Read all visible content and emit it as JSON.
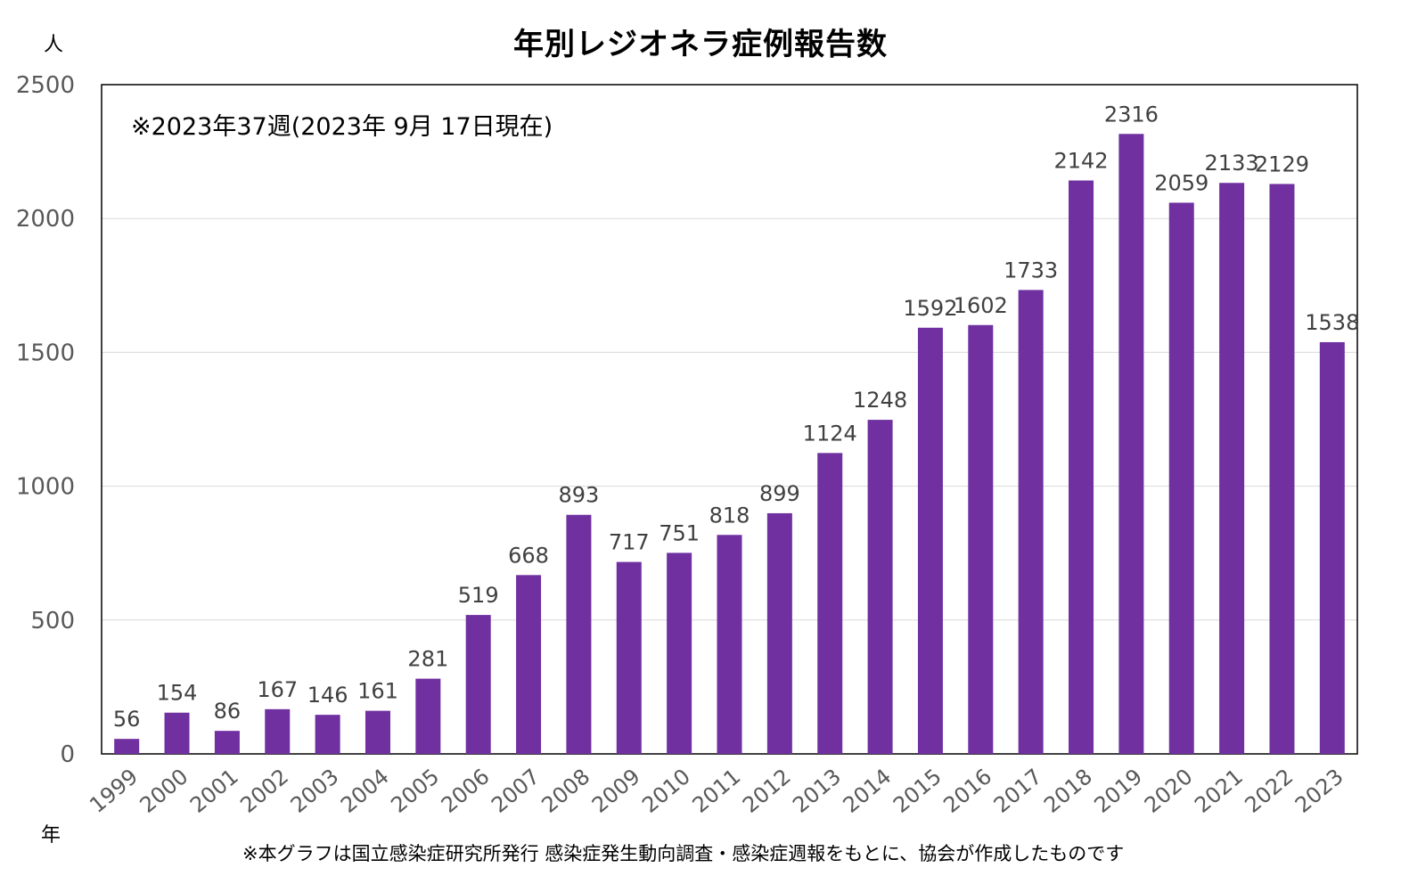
{
  "chart_data": {
    "type": "bar",
    "title": "年別レジオネラ症例報告数",
    "note": "※2023年37週(2023年 9月 17日現在)",
    "footnote": "※本グラフは国立感染症研究所発行 感染症発生動向調査・感染症週報をもとに、協会が作成したものです",
    "ylabel": "人",
    "xlabel": "年",
    "ylim": [
      0,
      2500
    ],
    "yticks": [
      0,
      500,
      1000,
      1500,
      2000,
      2500
    ],
    "grid": true,
    "bar_color": "#7030a0",
    "categories": [
      "1999",
      "2000",
      "2001",
      "2002",
      "2003",
      "2004",
      "2005",
      "2006",
      "2007",
      "2008",
      "2009",
      "2010",
      "2011",
      "2012",
      "2013",
      "2014",
      "2015",
      "2016",
      "2017",
      "2018",
      "2019",
      "2020",
      "2021",
      "2022",
      "2023"
    ],
    "values": [
      56,
      154,
      86,
      167,
      146,
      161,
      281,
      519,
      668,
      893,
      717,
      751,
      818,
      899,
      1124,
      1248,
      1592,
      1602,
      1733,
      2142,
      2316,
      2059,
      2133,
      2129,
      1538
    ]
  }
}
